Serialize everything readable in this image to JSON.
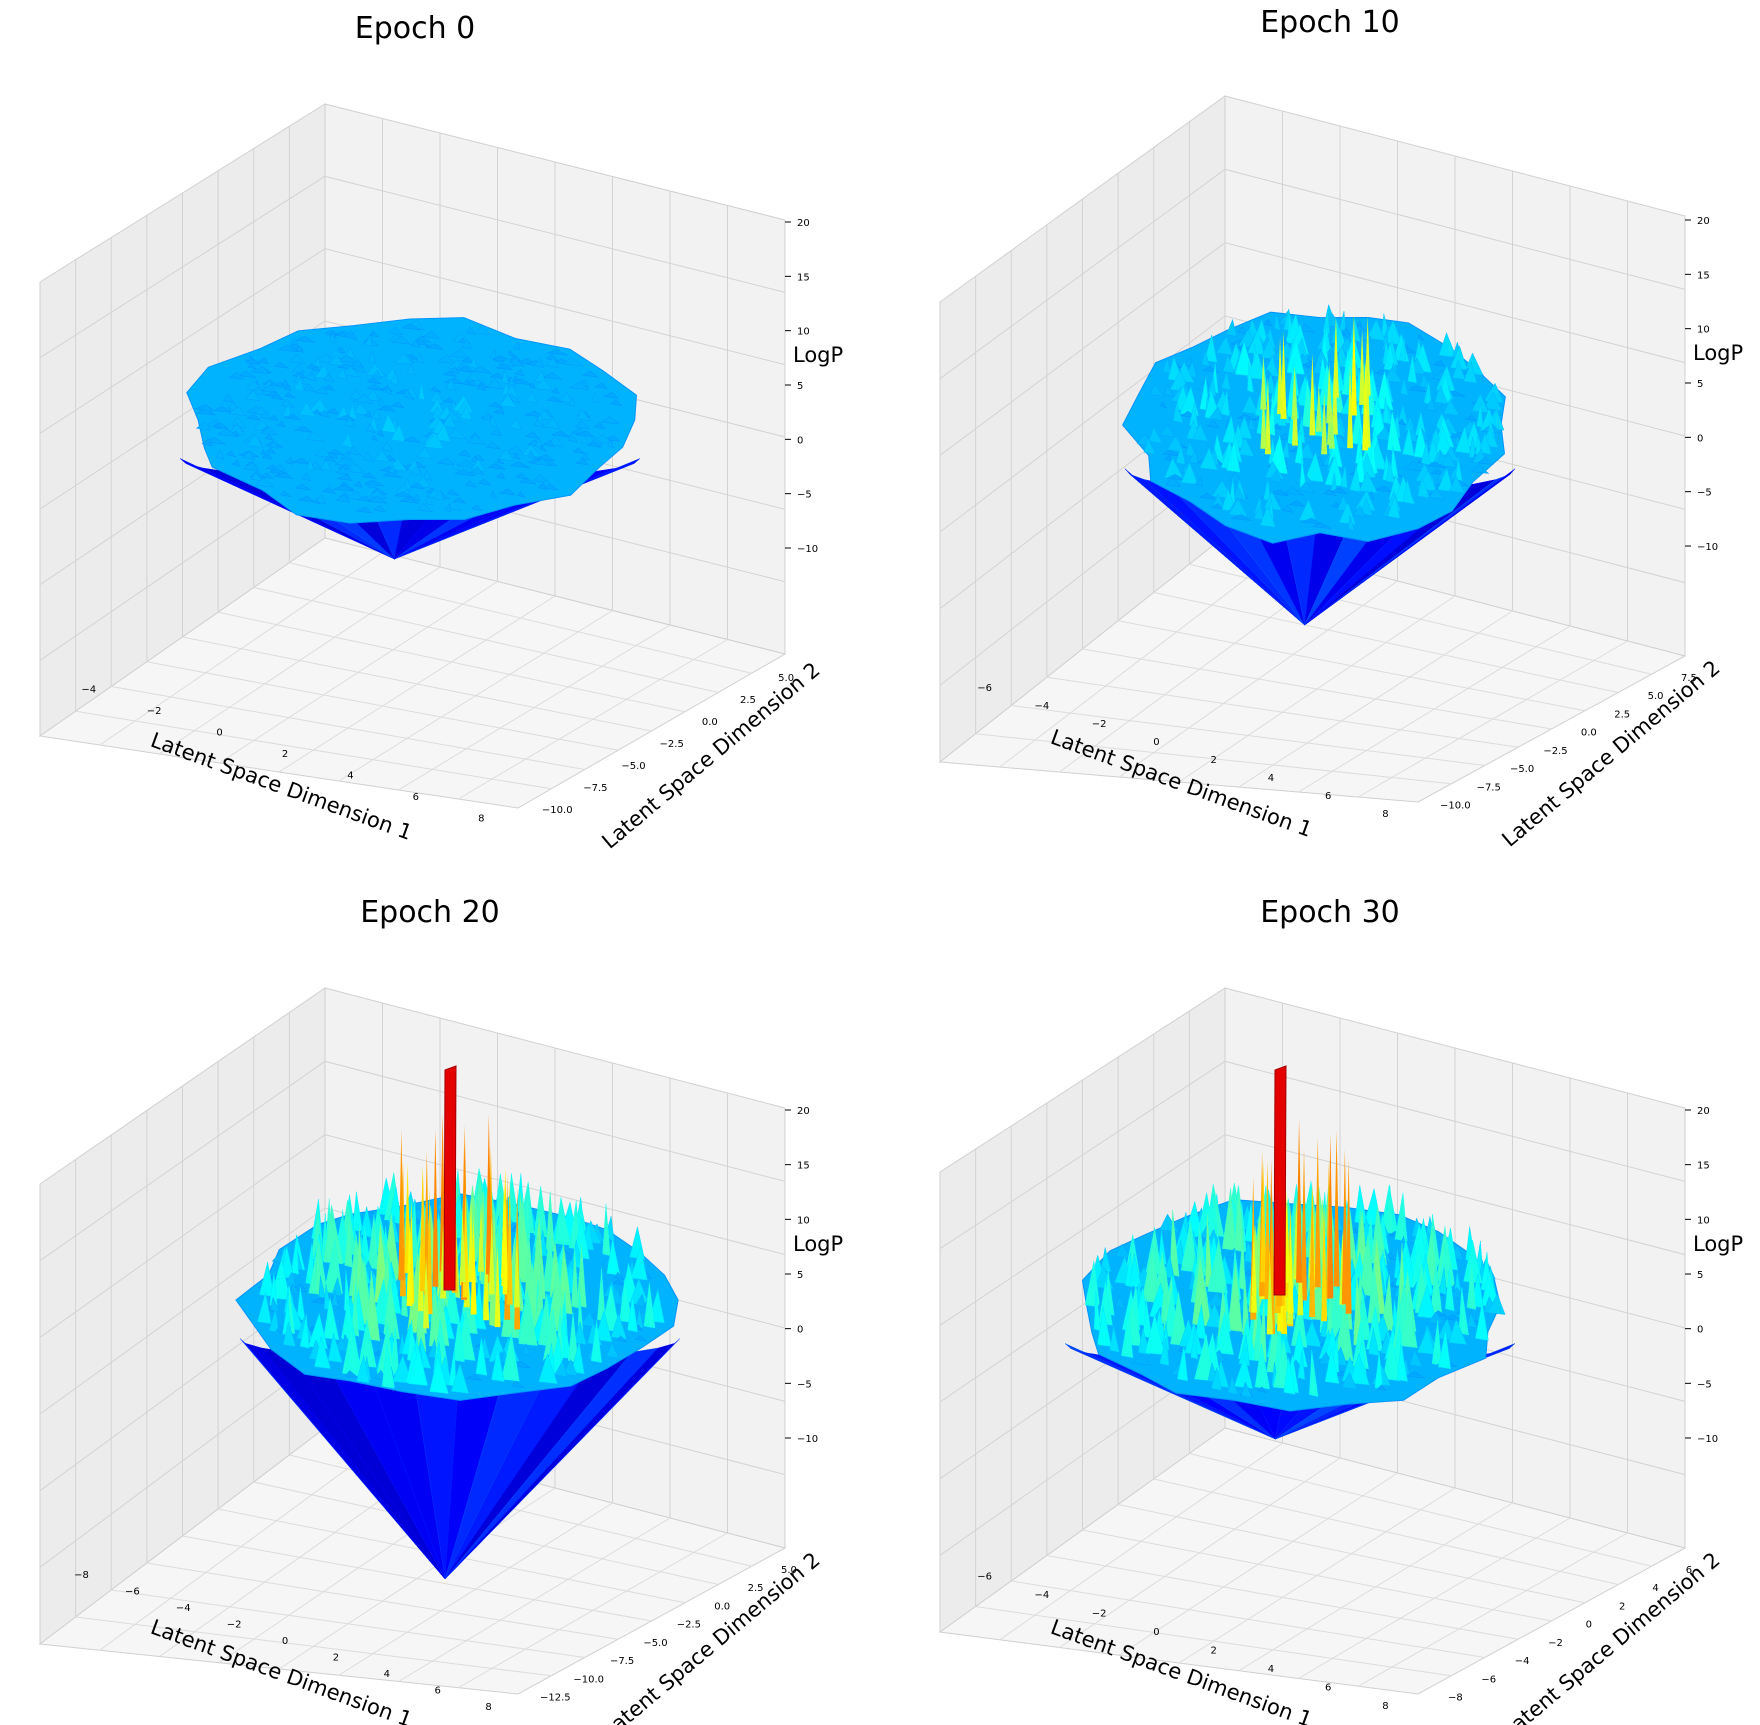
{
  "chart_data": [
    {
      "type": "surface3d",
      "title": "Epoch 0",
      "xlabel": "Latent Space Dimension 1",
      "ylabel": "Latent Space Dimension 2",
      "zlabel": "LogP",
      "x_ticks": [
        "−4",
        "−2",
        "0",
        "2",
        "4",
        "6",
        "8"
      ],
      "y_ticks": [
        "−10.0",
        "−7.5",
        "−5.0",
        "−2.5",
        "0.0",
        "2.5",
        "5.0"
      ],
      "z_ticks": [
        "−10",
        "−5",
        "0",
        "5",
        "10",
        "15",
        "20"
      ],
      "zlim": [
        -10,
        20
      ],
      "z_range": [
        -10,
        4
      ],
      "colormap": "jet",
      "grid": true
    },
    {
      "type": "surface3d",
      "title": "Epoch 10",
      "xlabel": "Latent Space Dimension 1",
      "ylabel": "Latent Space Dimension 2",
      "zlabel": "LogP",
      "x_ticks": [
        "−6",
        "−4",
        "−2",
        "0",
        "2",
        "4",
        "6",
        "8"
      ],
      "y_ticks": [
        "−10.0",
        "−7.5",
        "−5.0",
        "−2.5",
        "0.0",
        "2.5",
        "5.0",
        "7.5"
      ],
      "z_ticks": [
        "−10",
        "−5",
        "0",
        "5",
        "10",
        "15",
        "20"
      ],
      "zlim": [
        -10,
        20
      ],
      "z_range": [
        -10,
        12
      ],
      "colormap": "jet",
      "grid": true
    },
    {
      "type": "surface3d",
      "title": "Epoch 20",
      "xlabel": "Latent Space Dimension 1",
      "ylabel": "Latent Space Dimension 2",
      "zlabel": "LogP",
      "x_ticks": [
        "−8",
        "−6",
        "−4",
        "−2",
        "0",
        "2",
        "4",
        "6",
        "8"
      ],
      "y_ticks": [
        "−12.5",
        "−10.0",
        "−7.5",
        "−5.0",
        "−2.5",
        "0.0",
        "2.5",
        "5.0"
      ],
      "z_ticks": [
        "−10",
        "−5",
        "0",
        "5",
        "10",
        "15",
        "20"
      ],
      "zlim": [
        -10,
        20
      ],
      "z_range": [
        -10,
        20
      ],
      "colormap": "jet",
      "grid": true
    },
    {
      "type": "surface3d",
      "title": "Epoch 30",
      "xlabel": "Latent Space Dimension 1",
      "ylabel": "Latent Space Dimension 2",
      "zlabel": "LogP",
      "x_ticks": [
        "−6",
        "−4",
        "−2",
        "0",
        "2",
        "4",
        "6",
        "8"
      ],
      "y_ticks": [
        "−8",
        "−6",
        "−4",
        "−2",
        "0",
        "2",
        "4",
        "6"
      ],
      "z_ticks": [
        "−10",
        "−5",
        "0",
        "5",
        "10",
        "15",
        "20"
      ],
      "zlim": [
        -10,
        20
      ],
      "z_range": [
        -10,
        20
      ],
      "colormap": "jet",
      "grid": true
    }
  ]
}
